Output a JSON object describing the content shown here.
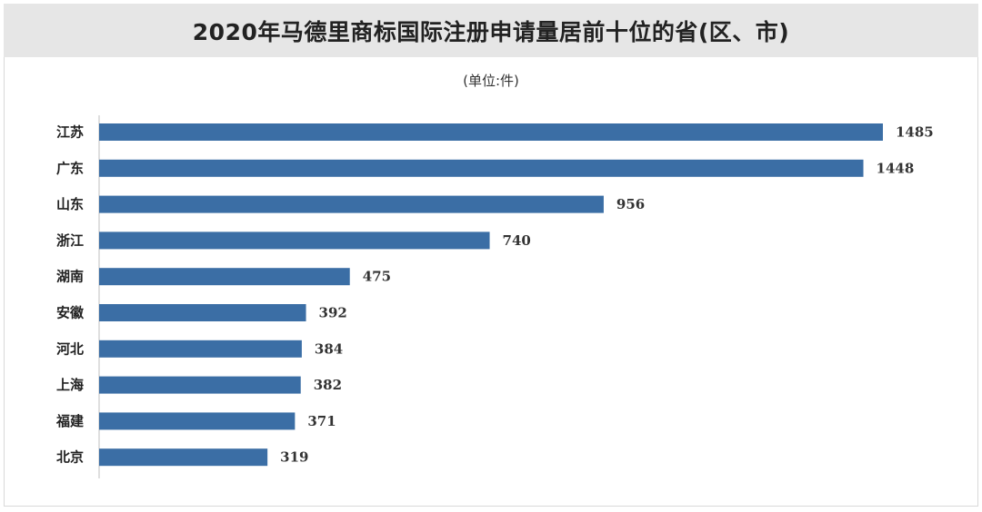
{
  "chart_data": {
    "type": "bar",
    "orientation": "horizontal",
    "title": "2020年马德里商标国际注册申请量居前十位的省(区、市)",
    "subtitle": "(单位:件)",
    "categories": [
      "江苏",
      "广东",
      "山东",
      "浙江",
      "湖南",
      "安徽",
      "河北",
      "上海",
      "福建",
      "北京"
    ],
    "values": [
      1485,
      1448,
      956,
      740,
      475,
      392,
      384,
      382,
      371,
      319
    ],
    "xlim": [
      0,
      1485
    ],
    "bar_color": "#3b6ea5",
    "grid": false,
    "legend": "none"
  }
}
